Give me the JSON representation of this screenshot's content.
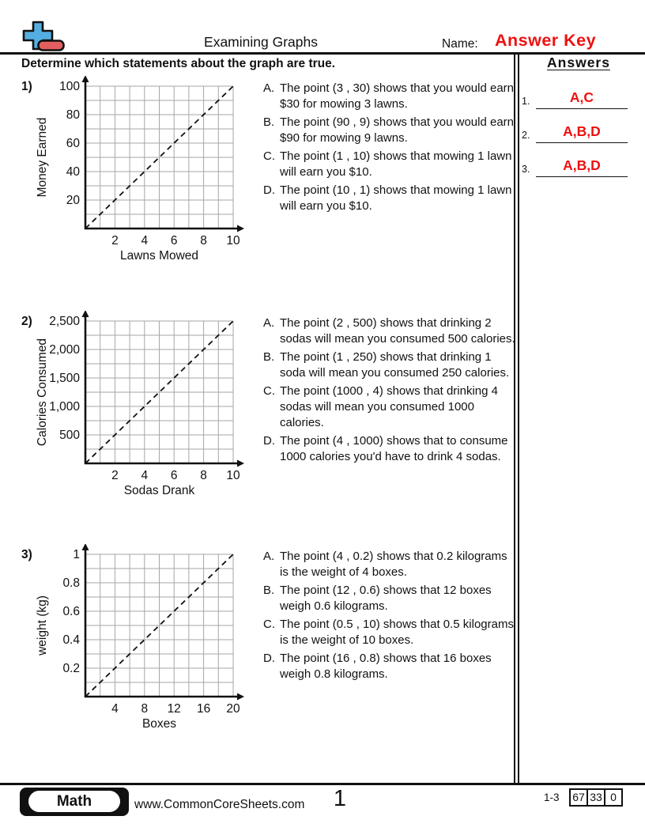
{
  "colors": {
    "ink": "#111111",
    "accent_red": "#ee1111",
    "logo_blue": "#55aee1",
    "logo_red": "#e35f5f",
    "grid_gray": "#a6a6a6"
  },
  "header": {
    "title": "Examining Graphs",
    "name_label": "Name:",
    "name_value": "Answer Key",
    "instruction": "Determine which statements about the graph are true.",
    "answers_title": "Answers"
  },
  "answers": [
    {
      "num": "1.",
      "value": "A,C"
    },
    {
      "num": "2.",
      "value": "A,B,D"
    },
    {
      "num": "3.",
      "value": "A,B,D"
    }
  ],
  "questions": [
    {
      "number": "1)",
      "options": [
        {
          "label": "A.",
          "text": "The point (3 , 30) shows that you would earn $30 for mowing 3 lawns."
        },
        {
          "label": "B.",
          "text": "The point (90 , 9) shows that you would earn $90 for mowing 9 lawns."
        },
        {
          "label": "C.",
          "text": "The point (1 , 10) shows that mowing 1 lawn will earn you $10."
        },
        {
          "label": "D.",
          "text": "The point (10 , 1) shows that mowing 1 lawn will earn you $10."
        }
      ]
    },
    {
      "number": "2)",
      "options": [
        {
          "label": "A.",
          "text": "The point (2 , 500) shows that drinking 2 sodas will mean you consumed 500 calories."
        },
        {
          "label": "B.",
          "text": "The point (1 , 250) shows that drinking 1 soda will mean you consumed 250 calories."
        },
        {
          "label": "C.",
          "text": "The point (1000 , 4) shows that drinking 4 sodas will mean you consumed 1000 calories."
        },
        {
          "label": "D.",
          "text": "The point (4 , 1000) shows that to consume 1000 calories you'd have to drink 4 sodas."
        }
      ]
    },
    {
      "number": "3)",
      "options": [
        {
          "label": "A.",
          "text": "The point (4 , 0.2) shows that 0.2 kilograms is the weight of 4 boxes."
        },
        {
          "label": "B.",
          "text": "The point (12 , 0.6) shows that 12 boxes weigh 0.6 kilograms."
        },
        {
          "label": "C.",
          "text": "The point (0.5 , 10) shows that 0.5 kilograms is the weight of 10 boxes."
        },
        {
          "label": "D.",
          "text": "The point (16 , 0.8) shows that 16 boxes weigh 0.8 kilograms."
        }
      ]
    }
  ],
  "chart_data": [
    {
      "type": "line",
      "line_style": "dashed",
      "xlabel": "Lawns Mowed",
      "ylabel": "Money Earned",
      "xlim": [
        0,
        10
      ],
      "ylim": [
        0,
        100
      ],
      "x_ticks": [
        "2",
        "4",
        "6",
        "8",
        "10"
      ],
      "y_ticks": [
        "20",
        "40",
        "60",
        "80",
        "100"
      ],
      "grid": true,
      "grid_divisions": [
        10,
        10
      ],
      "points": [
        [
          0,
          0
        ],
        [
          10,
          100
        ]
      ]
    },
    {
      "type": "line",
      "line_style": "dashed",
      "xlabel": "Sodas Drank",
      "ylabel": "Calories Consumed",
      "xlim": [
        0,
        10
      ],
      "ylim": [
        0,
        2500
      ],
      "x_ticks": [
        "2",
        "4",
        "6",
        "8",
        "10"
      ],
      "y_ticks": [
        "500",
        "1,000",
        "1,500",
        "2,000",
        "2,500"
      ],
      "grid": true,
      "grid_divisions": [
        10,
        10
      ],
      "points": [
        [
          0,
          0
        ],
        [
          10,
          2500
        ]
      ]
    },
    {
      "type": "line",
      "line_style": "dashed",
      "xlabel": "Boxes",
      "ylabel": "weight (kg)",
      "xlim": [
        0,
        20
      ],
      "ylim": [
        0,
        1
      ],
      "x_ticks": [
        "4",
        "8",
        "12",
        "16",
        "20"
      ],
      "y_ticks": [
        "0.2",
        "0.4",
        "0.6",
        "0.8",
        "1"
      ],
      "grid": true,
      "grid_divisions": [
        10,
        10
      ],
      "points": [
        [
          0,
          0
        ],
        [
          20,
          1
        ]
      ]
    }
  ],
  "footer": {
    "subject": "Math",
    "site": "www.CommonCoreSheets.com",
    "page_number": "1",
    "problem_range": "1-3",
    "score_boxes": [
      "67",
      "33",
      "0"
    ]
  }
}
